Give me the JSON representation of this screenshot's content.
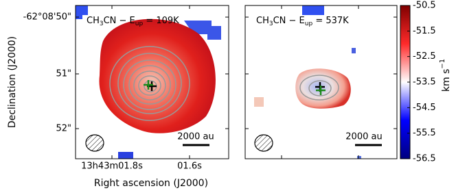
{
  "chart_data": [
    {
      "type": "map",
      "title_parts": [
        "CH",
        "3",
        "CN − E",
        "up",
        " = 109K"
      ],
      "ylabel": "Declination (J2000)",
      "xlabel": "Right ascension (J2000)",
      "ytick_labels": [
        "-62°08'50\"",
        "51\"",
        "52\""
      ],
      "xtick_labels": [
        "13h43m01.8s",
        "01.6s"
      ],
      "scale_label": "2000 au"
    },
    {
      "type": "map",
      "title_parts": [
        "CH",
        "3",
        "CN − E",
        "up",
        " = 537K"
      ],
      "scale_label": "2000 au"
    },
    {
      "type": "colorbar",
      "label_parts": [
        "km s",
        "−1"
      ],
      "ylim": [
        -56.5,
        -50.5
      ],
      "yticks": [
        -56.5,
        -55.5,
        -54.5,
        -53.5,
        -52.5,
        -51.5,
        -50.5
      ]
    }
  ]
}
